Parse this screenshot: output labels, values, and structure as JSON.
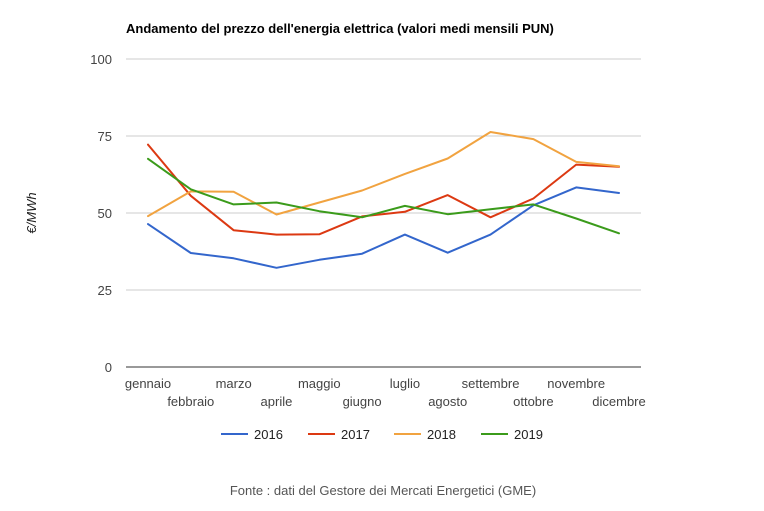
{
  "chart_data": {
    "type": "line",
    "title": "Andamento del prezzo dell'energia elettrica (valori medi mensili PUN)",
    "ylabel": "€/MWh",
    "xlabel": "",
    "ylim": [
      0,
      100
    ],
    "yticks": [
      "0",
      "25",
      "50",
      "75",
      "100"
    ],
    "grid": true,
    "legend_position": "bottom",
    "categories": [
      "gennaio",
      "febbraio",
      "marzo",
      "aprile",
      "maggio",
      "giugno",
      "luglio",
      "agosto",
      "settembre",
      "ottobre",
      "novembre",
      "dicembre"
    ],
    "series": [
      {
        "name": "2016",
        "color": "#3366cc",
        "values": [
          46.4,
          37.0,
          35.3,
          32.2,
          34.8,
          36.8,
          43.0,
          37.1,
          43.0,
          52.5,
          58.3,
          56.5
        ]
      },
      {
        "name": "2017",
        "color": "#dc3912",
        "values": [
          72.2,
          55.6,
          44.4,
          43.0,
          43.1,
          48.9,
          50.4,
          55.8,
          48.6,
          54.7,
          65.7,
          65.0
        ]
      },
      {
        "name": "2018",
        "color": "#f1a340",
        "values": [
          49.0,
          57.0,
          56.9,
          49.5,
          53.4,
          57.3,
          62.7,
          67.7,
          76.3,
          74.0,
          66.6,
          65.2
        ]
      },
      {
        "name": "2019",
        "color": "#3b9b1b",
        "values": [
          67.6,
          57.7,
          52.8,
          53.4,
          50.6,
          48.6,
          52.3,
          49.6,
          51.2,
          52.8,
          48.2,
          43.4
        ]
      }
    ],
    "source": "Fonte : dati del Gestore dei Mercati Energetici (GME)"
  }
}
